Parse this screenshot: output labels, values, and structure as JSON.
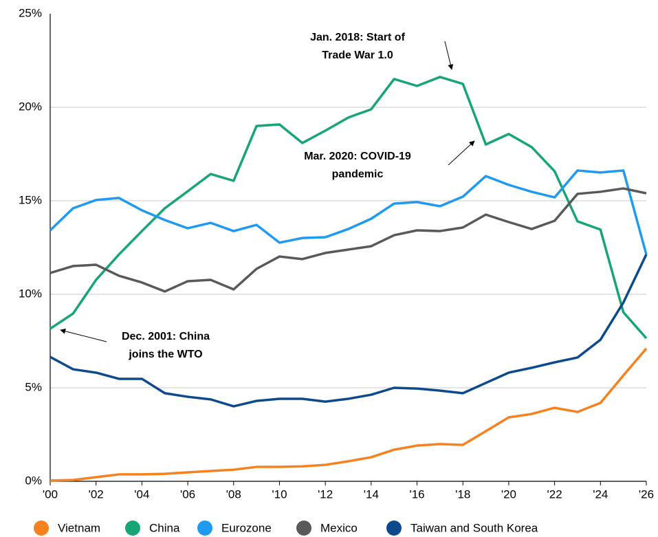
{
  "chart_data": {
    "type": "line",
    "x": [
      2000,
      2001,
      2002,
      2003,
      2004,
      2005,
      2006,
      2007,
      2008,
      2009,
      2010,
      2011,
      2012,
      2013,
      2014,
      2015,
      2016,
      2017,
      2018,
      2019,
      2020,
      2021,
      2022,
      2023,
      2024,
      2025,
      2026
    ],
    "series": [
      {
        "name": "Vietnam",
        "color": "#f5821f",
        "values": [
          0.04,
          0.07,
          0.22,
          0.37,
          0.37,
          0.4,
          0.48,
          0.55,
          0.62,
          0.77,
          0.77,
          0.8,
          0.88,
          1.07,
          1.29,
          1.69,
          1.91,
          1.99,
          1.95,
          2.68,
          3.42,
          3.6,
          3.93,
          3.71,
          4.19,
          5.66,
          7.1
        ]
      },
      {
        "name": "China",
        "color": "#17a673",
        "values": [
          8.16,
          8.97,
          10.77,
          12.13,
          13.38,
          14.6,
          15.51,
          16.43,
          16.07,
          19.0,
          19.08,
          18.09,
          18.75,
          19.45,
          19.89,
          21.51,
          21.14,
          21.62,
          21.25,
          18.01,
          18.57,
          17.87,
          16.58,
          13.9,
          13.46,
          9.04,
          7.65
        ]
      },
      {
        "name": "Eurozone",
        "color": "#1e9af1",
        "values": [
          13.42,
          14.6,
          15.04,
          15.15,
          14.49,
          13.97,
          13.53,
          13.82,
          13.38,
          13.71,
          12.76,
          13.01,
          13.05,
          13.49,
          14.04,
          14.85,
          14.93,
          14.71,
          15.22,
          16.32,
          15.85,
          15.48,
          15.18,
          16.62,
          16.51,
          16.62,
          12.13
        ]
      },
      {
        "name": "Mexico",
        "color": "#595959",
        "values": [
          11.14,
          11.51,
          11.58,
          10.99,
          10.63,
          10.15,
          10.7,
          10.77,
          10.26,
          11.36,
          12.02,
          11.88,
          12.21,
          12.39,
          12.57,
          13.16,
          13.42,
          13.38,
          13.57,
          14.26,
          13.86,
          13.49,
          13.93,
          15.37,
          15.48,
          15.66,
          15.4
        ]
      },
      {
        "name": "Taiwan and South Korea",
        "color": "#0c4a8c",
        "values": [
          6.65,
          5.99,
          5.81,
          5.48,
          5.48,
          4.71,
          4.52,
          4.38,
          4.01,
          4.3,
          4.41,
          4.41,
          4.26,
          4.41,
          4.63,
          5.0,
          4.96,
          4.85,
          4.71,
          5.26,
          5.81,
          6.07,
          6.36,
          6.62,
          7.57,
          9.56,
          12.13
        ]
      }
    ],
    "xlim": [
      2000,
      2026
    ],
    "xticks": [
      {
        "value": 2000,
        "label": "'00"
      },
      {
        "value": 2002,
        "label": "'02"
      },
      {
        "value": 2004,
        "label": "'04"
      },
      {
        "value": 2006,
        "label": "'06"
      },
      {
        "value": 2008,
        "label": "'08"
      },
      {
        "value": 2010,
        "label": "'10"
      },
      {
        "value": 2012,
        "label": "'12"
      },
      {
        "value": 2014,
        "label": "'14"
      },
      {
        "value": 2016,
        "label": "'16"
      },
      {
        "value": 2018,
        "label": "'18"
      },
      {
        "value": 2020,
        "label": "'20"
      },
      {
        "value": 2022,
        "label": "'22"
      },
      {
        "value": 2024,
        "label": "'24"
      },
      {
        "value": 2026,
        "label": "'26"
      }
    ],
    "ylim": [
      0,
      25
    ],
    "yticks": [
      {
        "value": 0,
        "label": "0%"
      },
      {
        "value": 5,
        "label": "5%"
      },
      {
        "value": 10,
        "label": "10%"
      },
      {
        "value": 15,
        "label": "15%"
      },
      {
        "value": 20,
        "label": "20%"
      },
      {
        "value": 25,
        "label": "25%"
      }
    ],
    "grid": true,
    "legend": "bottom",
    "annotations": [
      {
        "lines": [
          "Jan. 2018: Start of",
          "Trade War 1.0"
        ]
      },
      {
        "lines": [
          "Mar. 2020: COVID-19",
          "pandemic"
        ]
      },
      {
        "lines": [
          "Dec. 2001: China",
          "joins the WTO"
        ]
      }
    ]
  }
}
